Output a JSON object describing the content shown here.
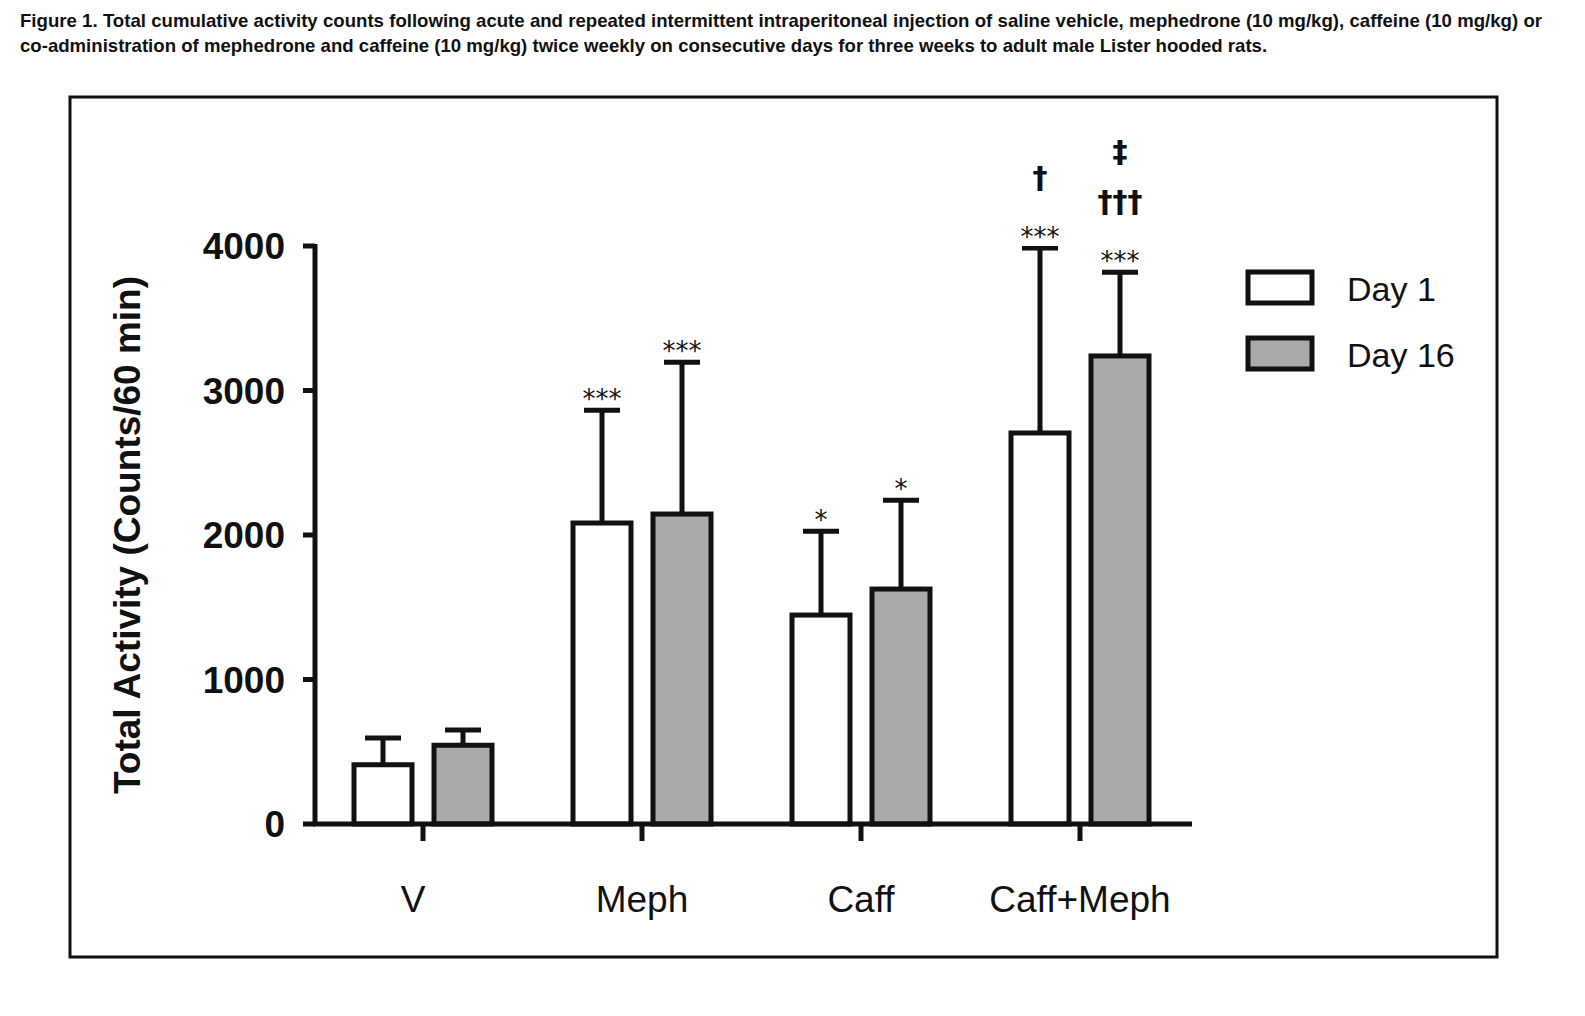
{
  "chart_data": {
    "type": "bar",
    "title": "Figure 1. Total cumulative activity counts following acute and repeated intermittent intraperitoneal injection of saline vehicle, mephedrone (10 mg/kg), caffeine (10 mg/kg) or co-administration of mephedrone and caffeine (10 mg/kg) twice weekly on consecutive days for three weeks to adult male Lister hooded rats.",
    "y_label": "Total Activity (Counts/60 min)",
    "categories": [
      "V",
      "Meph",
      "Caff",
      "Caff+Meph"
    ],
    "series": [
      {
        "name": "Day 1",
        "color": "#ffffff",
        "values": [
          410,
          2083,
          1446,
          2706
        ],
        "errors": [
          185,
          780,
          580,
          1280
        ],
        "annotations": [
          null,
          [
            "***"
          ],
          [
            "*"
          ],
          [
            "***",
            "†"
          ]
        ]
      },
      {
        "name": "Day 16",
        "color": "#aaaaaa",
        "values": [
          545,
          2145,
          1626,
          3239
        ],
        "errors": [
          105,
          1050,
          615,
          580
        ],
        "annotations": [
          null,
          [
            "***"
          ],
          [
            "*"
          ],
          [
            "***",
            "†††",
            "‡"
          ]
        ]
      }
    ],
    "ylim": [
      0,
      4000
    ],
    "yticks": [
      0,
      1000,
      2000,
      3000,
      4000
    ],
    "grid": false,
    "legend": "upper right"
  }
}
